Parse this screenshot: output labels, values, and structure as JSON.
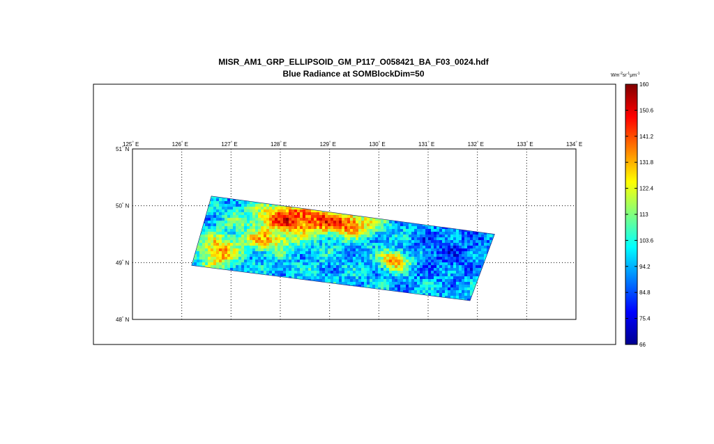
{
  "title": {
    "filename": "MISR_AM1_GRP_ELLIPSOID_GM_P117_O058421_BA_F03_0024.hdf",
    "subtitle": "Blue Radiance at SOMBlockDim=50"
  },
  "map": {
    "lon_range": [
      125,
      134
    ],
    "lat_range": [
      48,
      51
    ],
    "lon_ticks": [
      {
        "value": 125,
        "label": "125"
      },
      {
        "value": 126,
        "label": "126"
      },
      {
        "value": 127,
        "label": "127"
      },
      {
        "value": 128,
        "label": "128"
      },
      {
        "value": 129,
        "label": "129"
      },
      {
        "value": 130,
        "label": "130"
      },
      {
        "value": 131,
        "label": "131"
      },
      {
        "value": 132,
        "label": "132"
      },
      {
        "value": 133,
        "label": "133"
      },
      {
        "value": 134,
        "label": "134"
      }
    ],
    "lon_suffix": "E",
    "lat_ticks": [
      {
        "value": 51,
        "label": "51"
      },
      {
        "value": 50,
        "label": "50"
      },
      {
        "value": 49,
        "label": "49"
      },
      {
        "value": 48,
        "label": "48"
      }
    ],
    "lat_suffix": "N",
    "degree_symbol": "°",
    "grid": "dotted",
    "swath_corners_lonlat": [
      [
        126.6,
        50.17
      ],
      [
        132.35,
        49.5
      ],
      [
        131.85,
        48.33
      ],
      [
        126.2,
        48.95
      ]
    ],
    "colormap": "jet"
  },
  "colorbar": {
    "units": "Wm",
    "units_parts": [
      {
        "text": "Wm",
        "sup": false
      },
      {
        "text": "-2",
        "sup": true
      },
      {
        "text": "sr",
        "sup": false
      },
      {
        "text": "-1",
        "sup": true
      },
      {
        "text": "μm",
        "sup": false
      },
      {
        "text": "-1",
        "sup": true
      }
    ],
    "min": 66,
    "max": 160,
    "tick_labels": [
      "160",
      "150.6",
      "141.2",
      "131.8",
      "122.4",
      "113",
      "103.6",
      "94.2",
      "84.8",
      "75.4",
      "66"
    ]
  }
}
